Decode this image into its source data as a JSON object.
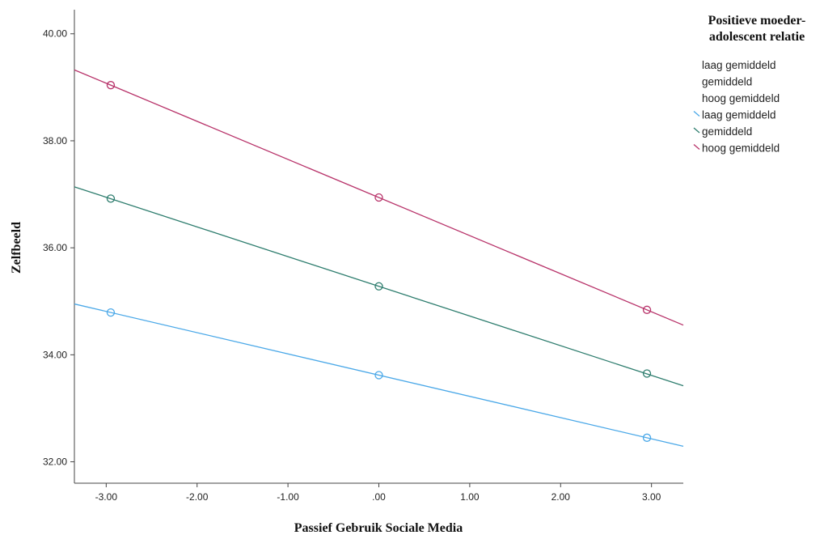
{
  "chart_data": {
    "type": "line",
    "xlabel": "Passief Gebruik Sociale Media",
    "ylabel": "Zelfbeeld",
    "xlim": [
      -3.35,
      3.35
    ],
    "ylim": [
      31.6,
      40.45
    ],
    "x_ticks": [
      -3,
      -2,
      -1,
      0,
      1,
      2,
      3
    ],
    "x_tick_labels": [
      "-3.00",
      "-2.00",
      "-1.00",
      ".00",
      "1.00",
      "2.00",
      "3.00"
    ],
    "y_ticks": [
      32,
      34,
      36,
      38,
      40
    ],
    "y_tick_labels": [
      "32.00",
      "34.00",
      "36.00",
      "38.00",
      "40.00"
    ],
    "grid": false,
    "legend": {
      "title_lines": [
        "Positieve moeder-",
        "adolescent relatie"
      ],
      "placement": "right",
      "marker_entries": [
        "laag gemiddeld",
        "gemiddeld",
        "hoog gemiddeld"
      ],
      "line_entries": [
        "laag gemiddeld",
        "gemiddeld",
        "hoog gemiddeld"
      ]
    },
    "series": [
      {
        "name": "laag gemiddeld",
        "color": "#4aa8e8",
        "points_x": [
          -2.95,
          0.0,
          2.95
        ],
        "points_y": [
          34.79,
          33.62,
          32.45
        ],
        "fit_slope": -0.397,
        "fit_intercept": 33.62
      },
      {
        "name": "gemiddeld",
        "color": "#2e7d6e",
        "points_x": [
          -2.95,
          0.0,
          2.95
        ],
        "points_y": [
          36.92,
          35.28,
          33.65
        ],
        "fit_slope": -0.555,
        "fit_intercept": 35.28
      },
      {
        "name": "hoog gemiddeld",
        "color": "#b8336a",
        "points_x": [
          -2.95,
          0.0,
          2.95
        ],
        "points_y": [
          39.04,
          36.94,
          34.84
        ],
        "fit_slope": -0.712,
        "fit_intercept": 36.94
      }
    ]
  }
}
